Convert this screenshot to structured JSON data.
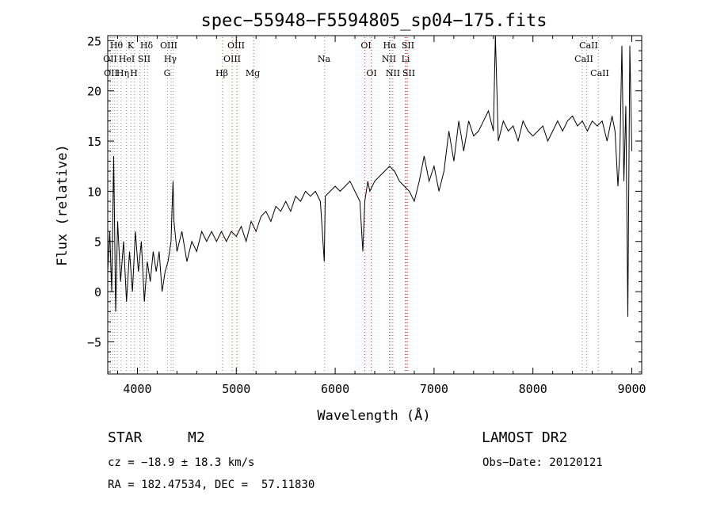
{
  "chart_data": {
    "type": "line",
    "title": "spec−55948−F5594805_sp04−175.fits",
    "xlabel": "Wavelength (Å)",
    "ylabel": "Flux (relative)",
    "xlim": [
      3700,
      9100
    ],
    "ylim": [
      -8.2,
      25.5
    ],
    "x_ticks": [
      4000,
      5000,
      6000,
      7000,
      8000,
      9000
    ],
    "x_tick_labels": [
      "4000",
      "5000",
      "6000",
      "7000",
      "8000",
      "9000"
    ],
    "y_ticks": [
      -5,
      0,
      5,
      10,
      15,
      20,
      25
    ],
    "y_tick_labels": [
      "−5",
      "0",
      "5",
      "10",
      "15",
      "20",
      "25"
    ],
    "grid": false,
    "series": [
      {
        "color": "#000000",
        "x": [
          3700,
          3720,
          3740,
          3760,
          3780,
          3800,
          3830,
          3860,
          3890,
          3920,
          3950,
          3980,
          4010,
          4040,
          4070,
          4100,
          4130,
          4160,
          4190,
          4220,
          4250,
          4280,
          4310,
          4340,
          4350,
          4360,
          4370,
          4400,
          4450,
          4500,
          4550,
          4600,
          4650,
          4700,
          4750,
          4800,
          4850,
          4900,
          4950,
          5000,
          5050,
          5100,
          5150,
          5200,
          5250,
          5300,
          5350,
          5400,
          5450,
          5500,
          5550,
          5600,
          5650,
          5700,
          5750,
          5800,
          5850,
          5890,
          5900,
          5950,
          6000,
          6050,
          6100,
          6150,
          6200,
          6250,
          6280,
          6300,
          6330,
          6350,
          6400,
          6450,
          6500,
          6550,
          6600,
          6650,
          6700,
          6750,
          6800,
          6850,
          6900,
          6950,
          7000,
          7050,
          7100,
          7150,
          7200,
          7250,
          7300,
          7350,
          7400,
          7450,
          7500,
          7550,
          7600,
          7620,
          7650,
          7700,
          7750,
          7800,
          7850,
          7900,
          7950,
          8000,
          8050,
          8100,
          8150,
          8200,
          8250,
          8300,
          8350,
          8400,
          8450,
          8500,
          8550,
          8600,
          8650,
          8700,
          8750,
          8800,
          8830,
          8860,
          8880,
          8900,
          8920,
          8940,
          8960,
          8980,
          9000
        ],
        "y": [
          2,
          6,
          0,
          13.5,
          -2,
          7,
          1,
          5,
          -1,
          4,
          0,
          6,
          2,
          5,
          -1,
          3,
          1,
          4,
          2,
          4,
          0,
          2,
          3,
          5,
          8,
          11,
          7,
          4,
          6,
          3,
          5,
          4,
          6,
          5,
          6,
          5,
          6,
          5,
          6,
          5.5,
          6.5,
          5,
          7,
          6,
          7.5,
          8,
          7,
          8.5,
          8,
          9,
          8,
          9.5,
          9,
          10,
          9.5,
          10,
          9,
          3,
          9.5,
          10,
          10.5,
          10,
          10.5,
          11,
          10,
          9,
          4,
          9,
          11,
          10,
          11,
          11.5,
          12,
          12.5,
          12,
          11,
          10.5,
          10,
          9,
          11,
          13.5,
          11,
          12.5,
          10,
          12,
          16,
          13,
          17,
          14,
          17,
          15.5,
          16,
          17,
          18,
          16,
          25.5,
          15,
          17,
          16,
          16.5,
          15,
          17,
          16,
          15.5,
          16,
          16.5,
          15,
          16,
          17,
          16,
          17,
          17.5,
          16.5,
          17,
          16,
          17,
          16.5,
          17,
          15,
          17.5,
          16,
          10.5,
          14,
          24.5,
          11,
          18.5,
          -2.5,
          24.5,
          14
        ]
      }
    ],
    "line_labels": {
      "top_row": [
        "Hθ",
        "K",
        "Hδ",
        "OIII",
        "OIII",
        "OI",
        "Hα",
        "SII",
        "CaII"
      ],
      "middle_row": [
        "OII",
        "HeI",
        "SII",
        "Hγ",
        "OIII",
        "Na",
        "NII",
        "Li",
        "CaII"
      ],
      "bottom_row": [
        "OII",
        "Hη",
        "H",
        "G",
        "Hβ",
        "Mg",
        "OI",
        "NII",
        "SII",
        "CaII"
      ]
    }
  },
  "info": {
    "class": "STAR",
    "subclass": "M2",
    "survey": "LAMOST DR2",
    "cz": "cz = −18.9 ± 18.3 km/s",
    "obs_date": "Obs−Date: 20120121",
    "radec": "RA = 182.47534, DEC =  57.11830"
  }
}
